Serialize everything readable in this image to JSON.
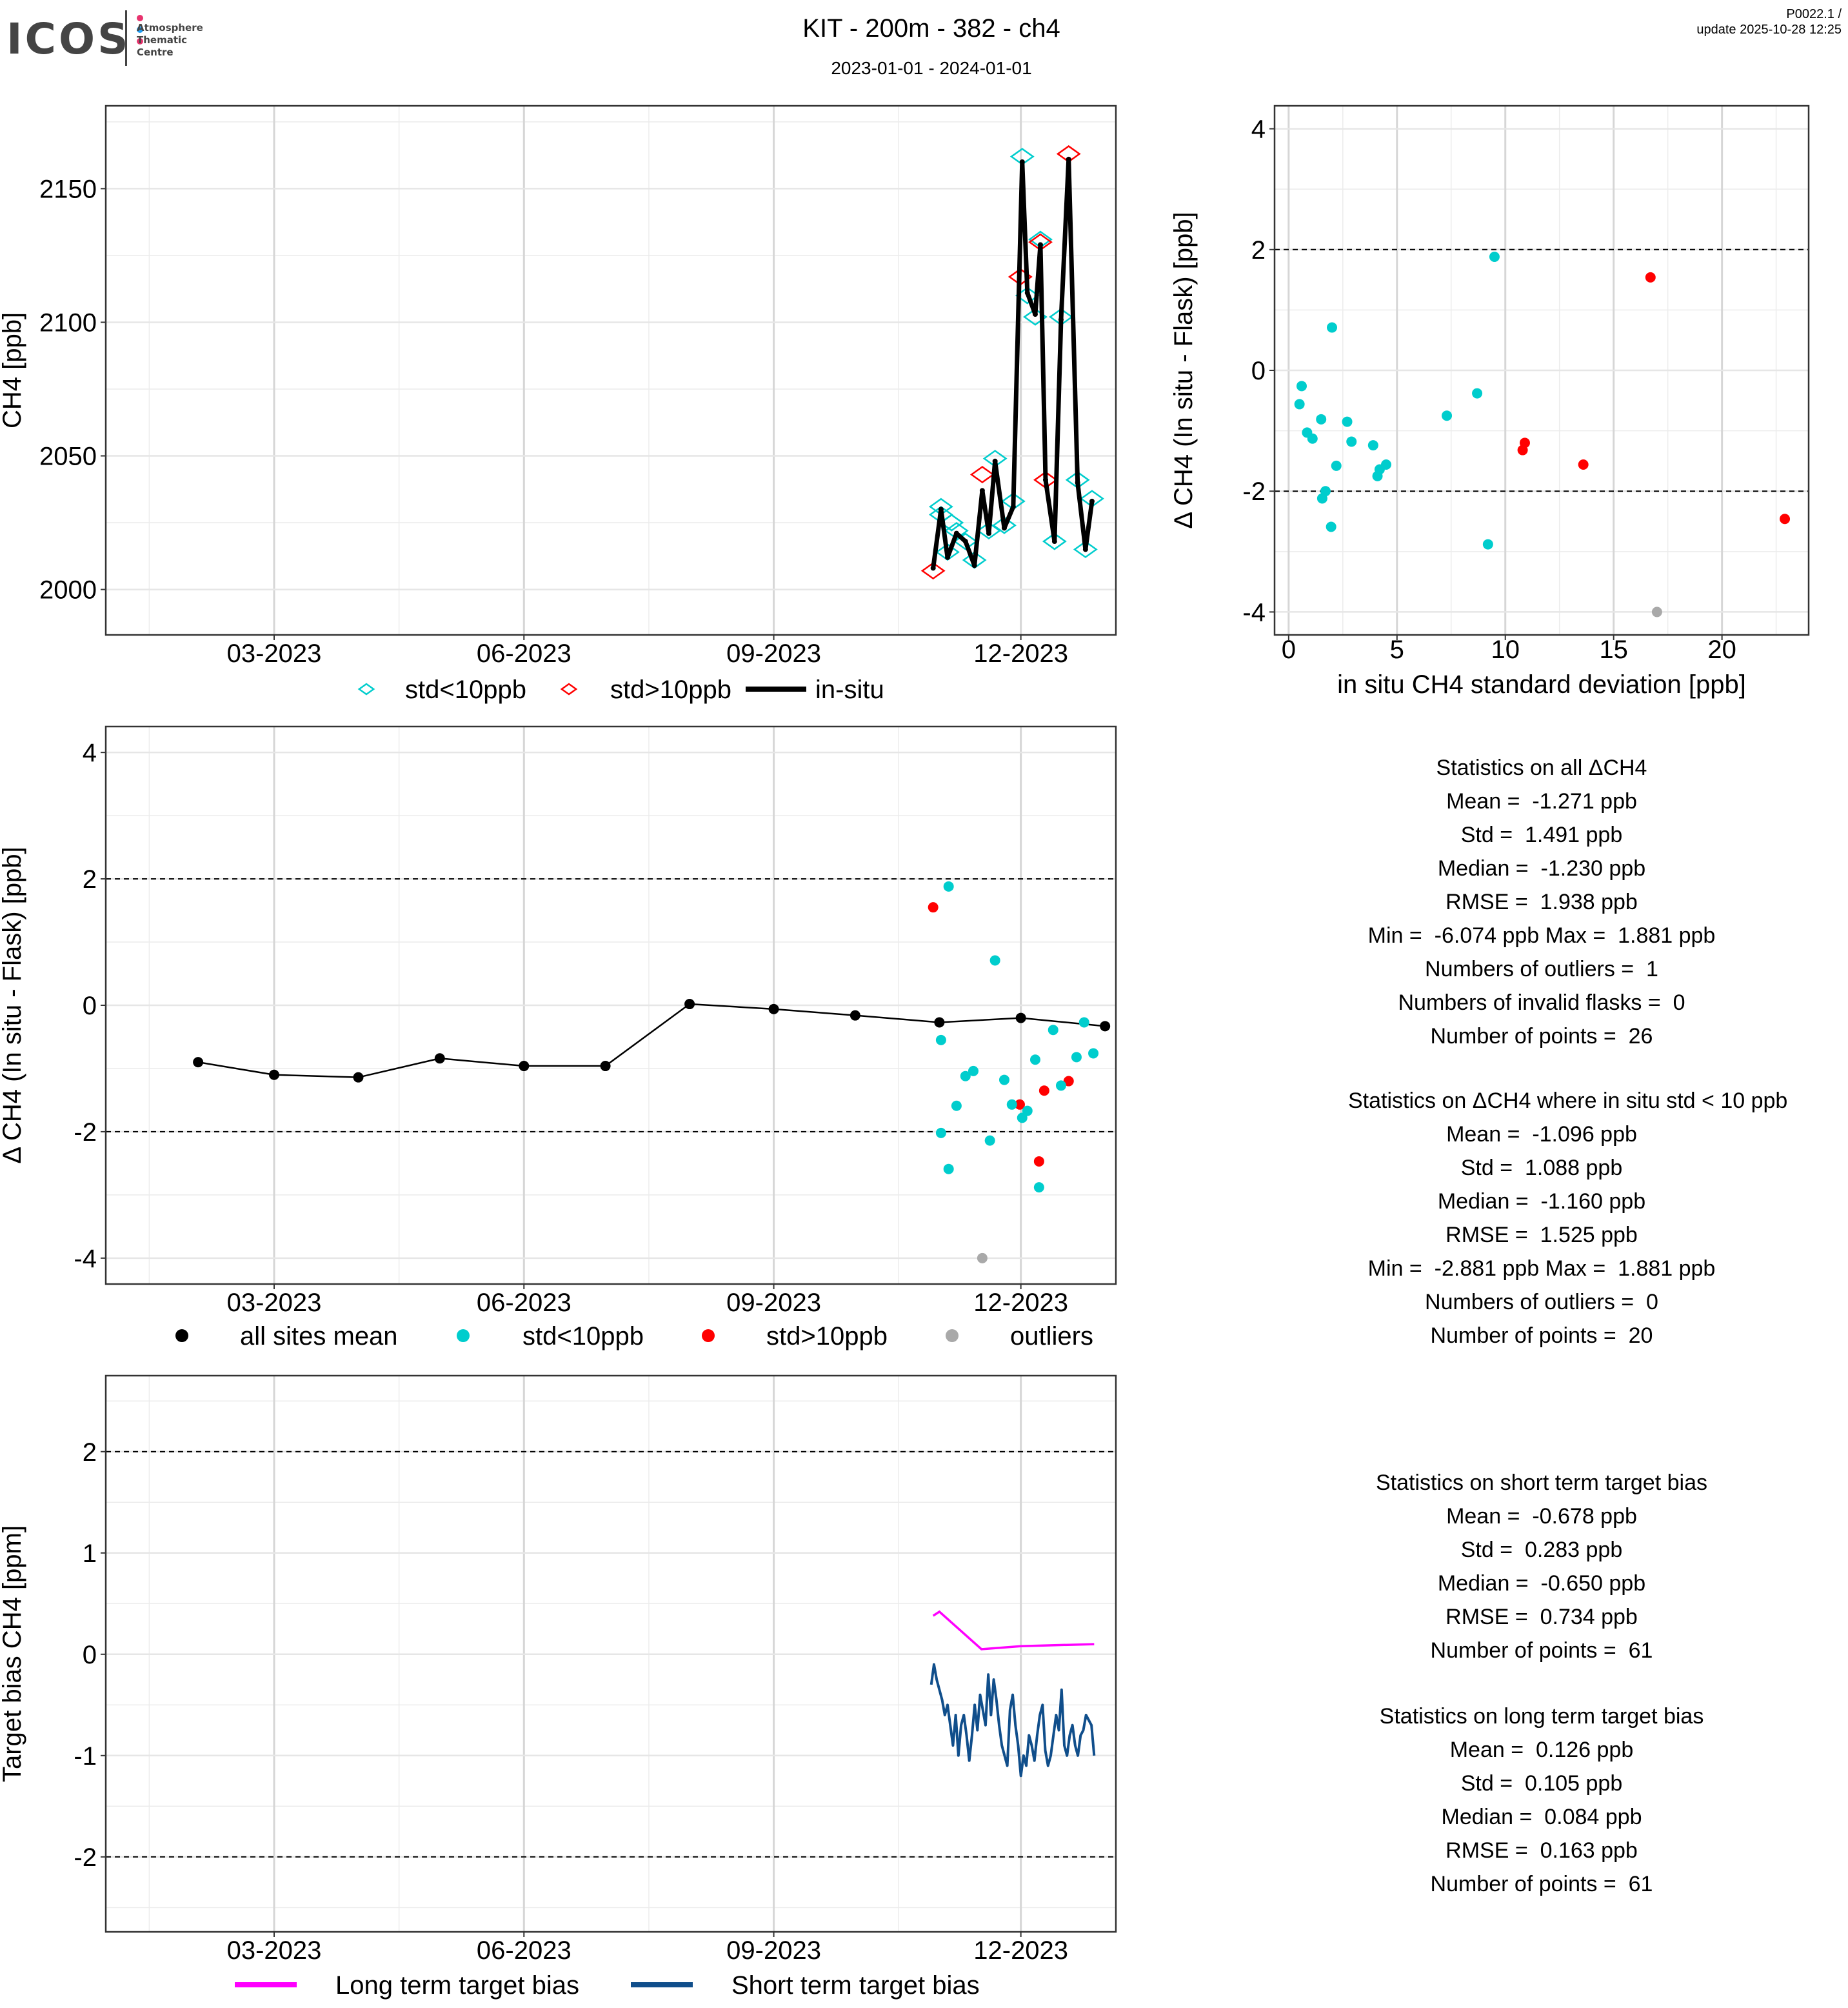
{
  "header": {
    "logo": {
      "name": "ICOS",
      "subtitle_lines": [
        "Atmosphere",
        "Thematic",
        "Centre"
      ],
      "dot_colors": [
        "#e8336e",
        "#1f9bf0",
        "#e8336e"
      ]
    },
    "title": "KIT - 200m - 382 - ch4",
    "date_range": "2023-01-01 - 2024-01-01",
    "version": "P0022.1 /",
    "update": "update  2025-10-28 12:25"
  },
  "colors": {
    "cyan": "#00CDCD",
    "red": "#FF0000",
    "grey": "#A9A9A9",
    "black": "#000000",
    "magenta": "#FF00FF",
    "blue": "#104E8B"
  },
  "chart_data": [
    {
      "type": "line",
      "id": "ch4-timeseries",
      "ylabel": "CH4 [ppb]",
      "xlabel": "",
      "x_unit": "days since 2023-01-01",
      "xlim": [
        -3,
        369
      ],
      "ylim": [
        1983,
        2181
      ],
      "xticks": [
        {
          "x": 59,
          "label": "03-2023"
        },
        {
          "x": 151,
          "label": "06-2023"
        },
        {
          "x": 243,
          "label": "09-2023"
        },
        {
          "x": 334,
          "label": "12-2023"
        }
      ],
      "yticks": [
        {
          "y": 2000,
          "label": "2000"
        },
        {
          "y": 2050,
          "label": "2050"
        },
        {
          "y": 2100,
          "label": "2100"
        },
        {
          "y": 2150,
          "label": "2150"
        }
      ],
      "insitu": {
        "x": [
          301.7,
          304.6,
          307,
          310.3,
          313.6,
          316.9,
          319.8,
          322.2,
          324.5,
          327.9,
          331.2,
          334.5,
          336.4,
          339.3,
          341.2,
          343.1,
          346.4,
          348.8,
          351.6,
          354.9,
          357.8,
          360.2
        ],
        "y": [
          2008,
          2030,
          2012,
          2021,
          2018,
          2009,
          2037,
          2021,
          2048,
          2023,
          2031,
          2160,
          2111,
          2103,
          2129,
          2041,
          2018,
          2101,
          2161,
          2040,
          2015,
          2033
        ]
      },
      "flasks": [
        {
          "x": 301.7,
          "y": 2007,
          "class": "std>10ppb"
        },
        {
          "x": 304.6,
          "y": 2031,
          "class": "std<10ppb"
        },
        {
          "x": 304.6,
          "y": 2028,
          "class": "std<10ppb"
        },
        {
          "x": 307,
          "y": 2014,
          "class": "std<10ppb"
        },
        {
          "x": 308.5,
          "y": 2025,
          "class": "std<10ppb"
        },
        {
          "x": 310.3,
          "y": 2022,
          "class": "std<10ppb"
        },
        {
          "x": 313.6,
          "y": 2018,
          "class": "std<10ppb"
        },
        {
          "x": 316.9,
          "y": 2011,
          "class": "std<10ppb"
        },
        {
          "x": 319.8,
          "y": 2043,
          "class": "std>10ppb"
        },
        {
          "x": 322.2,
          "y": 2022,
          "class": "std<10ppb"
        },
        {
          "x": 324.5,
          "y": 2049,
          "class": "std<10ppb"
        },
        {
          "x": 327.9,
          "y": 2024,
          "class": "std<10ppb"
        },
        {
          "x": 331.2,
          "y": 2033,
          "class": "std<10ppb"
        },
        {
          "x": 334.5,
          "y": 2162,
          "class": "std<10ppb"
        },
        {
          "x": 333.8,
          "y": 2117,
          "class": "std>10ppb"
        },
        {
          "x": 336.4,
          "y": 2110,
          "class": "std<10ppb"
        },
        {
          "x": 339.3,
          "y": 2102,
          "class": "std<10ppb"
        },
        {
          "x": 341.2,
          "y": 2131,
          "class": "std<10ppb"
        },
        {
          "x": 341.2,
          "y": 2130,
          "class": "std>10ppb"
        },
        {
          "x": 343.1,
          "y": 2041,
          "class": "std>10ppb"
        },
        {
          "x": 346.4,
          "y": 2018,
          "class": "std<10ppb"
        },
        {
          "x": 348.8,
          "y": 2102,
          "class": "std<10ppb"
        },
        {
          "x": 351.6,
          "y": 2163,
          "class": "std>10ppb"
        },
        {
          "x": 354.9,
          "y": 2041,
          "class": "std<10ppb"
        },
        {
          "x": 357.8,
          "y": 2015,
          "class": "std<10ppb"
        },
        {
          "x": 360.2,
          "y": 2034,
          "class": "std<10ppb"
        }
      ],
      "legend": [
        {
          "label": "std<10ppb",
          "kind": "diamond",
          "color": "cyan"
        },
        {
          "label": "std>10ppb",
          "kind": "diamond",
          "color": "red"
        },
        {
          "label": "in-situ",
          "kind": "line",
          "color": "black"
        }
      ],
      "legend_position": "bottom"
    },
    {
      "type": "scatter",
      "id": "delta-vs-std",
      "xlabel": "in situ CH4 standard deviation [ppb]",
      "ylabel": "Δ CH4 (In situ - Flask) [ppb]",
      "xlim": [
        -0.65,
        24.0
      ],
      "ylim": [
        -4.38,
        4.38
      ],
      "xticks": [
        {
          "x": 0,
          "label": "0"
        },
        {
          "x": 5,
          "label": "5"
        },
        {
          "x": 10,
          "label": "10"
        },
        {
          "x": 15,
          "label": "15"
        },
        {
          "x": 20,
          "label": "20"
        }
      ],
      "yticks": [
        {
          "y": -4,
          "label": "-4"
        },
        {
          "y": -2,
          "label": "-2"
        },
        {
          "y": 0,
          "label": "0"
        },
        {
          "y": 2,
          "label": "2"
        },
        {
          "y": 4,
          "label": "4"
        }
      ],
      "hlines": [
        -2,
        2
      ],
      "points": [
        {
          "x": 9.5,
          "y": 1.88,
          "class": "std<10ppb"
        },
        {
          "x": 2.0,
          "y": 0.71,
          "class": "std<10ppb"
        },
        {
          "x": 0.6,
          "y": -0.26,
          "class": "std<10ppb"
        },
        {
          "x": 0.5,
          "y": -0.56,
          "class": "std<10ppb"
        },
        {
          "x": 0.85,
          "y": -1.03,
          "class": "std<10ppb"
        },
        {
          "x": 1.1,
          "y": -1.13,
          "class": "std<10ppb"
        },
        {
          "x": 1.5,
          "y": -0.81,
          "class": "std<10ppb"
        },
        {
          "x": 1.7,
          "y": -2.0,
          "class": "std<10ppb"
        },
        {
          "x": 1.55,
          "y": -2.12,
          "class": "std<10ppb"
        },
        {
          "x": 1.96,
          "y": -2.59,
          "class": "std<10ppb"
        },
        {
          "x": 2.2,
          "y": -1.58,
          "class": "std<10ppb"
        },
        {
          "x": 2.7,
          "y": -0.85,
          "class": "std<10ppb"
        },
        {
          "x": 2.9,
          "y": -1.18,
          "class": "std<10ppb"
        },
        {
          "x": 3.9,
          "y": -1.24,
          "class": "std<10ppb"
        },
        {
          "x": 4.1,
          "y": -1.75,
          "class": "std<10ppb"
        },
        {
          "x": 4.2,
          "y": -1.64,
          "class": "std<10ppb"
        },
        {
          "x": 4.5,
          "y": -1.56,
          "class": "std<10ppb"
        },
        {
          "x": 7.3,
          "y": -0.75,
          "class": "std<10ppb"
        },
        {
          "x": 8.7,
          "y": -0.38,
          "class": "std<10ppb"
        },
        {
          "x": 9.2,
          "y": -2.88,
          "class": "std<10ppb"
        },
        {
          "x": 16.7,
          "y": 1.54,
          "class": "std>10ppb"
        },
        {
          "x": 10.8,
          "y": -1.32,
          "class": "std>10ppb"
        },
        {
          "x": 10.9,
          "y": -1.2,
          "class": "std>10ppb"
        },
        {
          "x": 13.6,
          "y": -1.56,
          "class": "std>10ppb"
        },
        {
          "x": 22.9,
          "y": -2.46,
          "class": "std>10ppb"
        },
        {
          "x": 17.0,
          "y": -4.0,
          "class": "outliers"
        }
      ]
    },
    {
      "type": "scatter",
      "id": "delta-timeseries",
      "ylabel": "Δ CH4 (In situ - Flask) [ppb]",
      "x_unit": "days since 2023-01-01",
      "xlim": [
        -3,
        369
      ],
      "ylim": [
        -4.41,
        4.41
      ],
      "xticks": [
        {
          "x": 59,
          "label": "03-2023"
        },
        {
          "x": 151,
          "label": "06-2023"
        },
        {
          "x": 243,
          "label": "09-2023"
        },
        {
          "x": 334,
          "label": "12-2023"
        }
      ],
      "yticks": [
        {
          "y": -4,
          "label": "-4"
        },
        {
          "y": -2,
          "label": "-2"
        },
        {
          "y": 0,
          "label": "0"
        },
        {
          "y": 2,
          "label": "2"
        },
        {
          "y": 4,
          "label": "4"
        }
      ],
      "hlines": [
        -2,
        2
      ],
      "all_sites_mean": {
        "x": [
          31,
          59,
          90,
          120,
          151,
          181,
          212,
          243,
          273,
          304,
          334,
          365
        ],
        "y": [
          -0.9,
          -1.1,
          -1.14,
          -0.84,
          -0.96,
          -0.96,
          0.02,
          -0.06,
          -0.16,
          -0.27,
          -0.2,
          -0.33
        ]
      },
      "points": [
        {
          "x": 301.7,
          "y": 1.55,
          "class": "std>10ppb"
        },
        {
          "x": 333.6,
          "y": -1.57,
          "class": "std>10ppb"
        },
        {
          "x": 342.6,
          "y": -1.35,
          "class": "std>10ppb"
        },
        {
          "x": 340.7,
          "y": -2.47,
          "class": "std>10ppb"
        },
        {
          "x": 351.6,
          "y": -1.2,
          "class": "std>10ppb"
        },
        {
          "x": 307.4,
          "y": 1.88,
          "class": "std<10ppb"
        },
        {
          "x": 304.6,
          "y": -0.55,
          "class": "std<10ppb"
        },
        {
          "x": 304.6,
          "y": -2.02,
          "class": "std<10ppb"
        },
        {
          "x": 307.4,
          "y": -2.59,
          "class": "std<10ppb"
        },
        {
          "x": 310.3,
          "y": -1.59,
          "class": "std<10ppb"
        },
        {
          "x": 313.6,
          "y": -1.12,
          "class": "std<10ppb"
        },
        {
          "x": 316.5,
          "y": -1.04,
          "class": "std<10ppb"
        },
        {
          "x": 322.6,
          "y": -2.14,
          "class": "std<10ppb"
        },
        {
          "x": 324.5,
          "y": 0.71,
          "class": "std<10ppb"
        },
        {
          "x": 327.9,
          "y": -1.18,
          "class": "std<10ppb"
        },
        {
          "x": 330.7,
          "y": -1.57,
          "class": "std<10ppb"
        },
        {
          "x": 334.5,
          "y": -1.78,
          "class": "std<10ppb"
        },
        {
          "x": 336.4,
          "y": -1.67,
          "class": "std<10ppb"
        },
        {
          "x": 339.3,
          "y": -0.86,
          "class": "std<10ppb"
        },
        {
          "x": 340.7,
          "y": -2.88,
          "class": "std<10ppb"
        },
        {
          "x": 345.9,
          "y": -0.39,
          "class": "std<10ppb"
        },
        {
          "x": 348.8,
          "y": -1.27,
          "class": "std<10ppb"
        },
        {
          "x": 354.5,
          "y": -0.82,
          "class": "std<10ppb"
        },
        {
          "x": 357.3,
          "y": -0.27,
          "class": "std<10ppb"
        },
        {
          "x": 360.7,
          "y": -0.76,
          "class": "std<10ppb"
        },
        {
          "x": 319.8,
          "y": -4.0,
          "class": "outliers"
        }
      ],
      "legend": [
        {
          "label": "all sites mean",
          "color": "black"
        },
        {
          "label": "std<10ppb",
          "color": "cyan"
        },
        {
          "label": "std>10ppb",
          "color": "red"
        },
        {
          "label": "outliers",
          "color": "grey"
        }
      ],
      "legend_position": "bottom"
    },
    {
      "type": "line",
      "id": "target-bias",
      "ylabel": "Target bias CH4 [ppm]",
      "x_unit": "days since 2023-01-01",
      "xlim": [
        -3,
        369
      ],
      "ylim": [
        -2.74,
        2.75
      ],
      "xticks": [
        {
          "x": 59,
          "label": "03-2023"
        },
        {
          "x": 151,
          "label": "06-2023"
        },
        {
          "x": 243,
          "label": "09-2023"
        },
        {
          "x": 334,
          "label": "12-2023"
        }
      ],
      "yticks": [
        {
          "y": -2,
          "label": "-2"
        },
        {
          "y": -1,
          "label": "-1"
        },
        {
          "y": 0,
          "label": "0"
        },
        {
          "y": 1,
          "label": "1"
        },
        {
          "y": 2,
          "label": "2"
        }
      ],
      "hlines": [
        -2,
        2
      ],
      "series": [
        {
          "name": "Long term target bias",
          "color": "magenta",
          "x": [
            301.7,
            304,
            319.5,
            334,
            361
          ],
          "y": [
            0.38,
            0.42,
            0.05,
            0.08,
            0.1
          ]
        },
        {
          "name": "Short term target bias",
          "color": "blue",
          "x_start": 301,
          "x_step": 1,
          "y": [
            -0.3,
            -0.1,
            -0.25,
            -0.35,
            -0.45,
            -0.6,
            -0.5,
            -0.7,
            -0.9,
            -0.6,
            -1.0,
            -0.7,
            -0.6,
            -0.8,
            -1.05,
            -0.8,
            -0.5,
            -0.75,
            -0.4,
            -0.55,
            -0.7,
            -0.2,
            -0.6,
            -0.25,
            -0.45,
            -0.7,
            -0.9,
            -1.0,
            -1.1,
            -0.55,
            -0.4,
            -0.7,
            -0.9,
            -1.2,
            -1.0,
            -1.1,
            -0.8,
            -0.9,
            -1.05,
            -0.8,
            -0.6,
            -0.5,
            -0.95,
            -1.1,
            -1.0,
            -0.8,
            -0.6,
            -0.75,
            -0.35,
            -0.9,
            -1.0,
            -0.8,
            -0.7,
            -0.9,
            -1.0,
            -0.8,
            -0.75,
            -0.6,
            -0.65,
            -0.7,
            -1.0
          ]
        }
      ],
      "legend_position": "bottom"
    }
  ],
  "stats": [
    {
      "title": "Statistics on all ΔCH4",
      "lines": [
        "Mean =  -1.271 ppb",
        "Std =  1.491 ppb",
        "Median =  -1.230 ppb",
        "RMSE =  1.938 ppb",
        "Min =  -6.074 ppb Max =  1.881 ppb",
        "Numbers of outliers =  1",
        "Numbers of invalid flasks =  0",
        "Number of points =  26"
      ]
    },
    {
      "title": "Statistics on ΔCH4 where in situ std < 10 ppb",
      "lines": [
        "Mean =  -1.096 ppb",
        "Std =  1.088 ppb",
        "Median =  -1.160 ppb",
        "RMSE =  1.525 ppb",
        "Min =  -2.881 ppb Max =  1.881 ppb",
        "Numbers of outliers =  0",
        "Number of points =  20"
      ]
    },
    {
      "title": "Statistics on short term target bias",
      "lines": [
        "Mean =  -0.678 ppb",
        "Std =  0.283 ppb",
        "Median =  -0.650 ppb",
        "RMSE =  0.734 ppb",
        "Number of points =  61"
      ]
    },
    {
      "title": "Statistics on long term target bias",
      "lines": [
        "Mean =  0.126 ppb",
        "Std =  0.105 ppb",
        "Median =  0.084 ppb",
        "RMSE =  0.163 ppb",
        "Number of points =  61"
      ]
    }
  ]
}
